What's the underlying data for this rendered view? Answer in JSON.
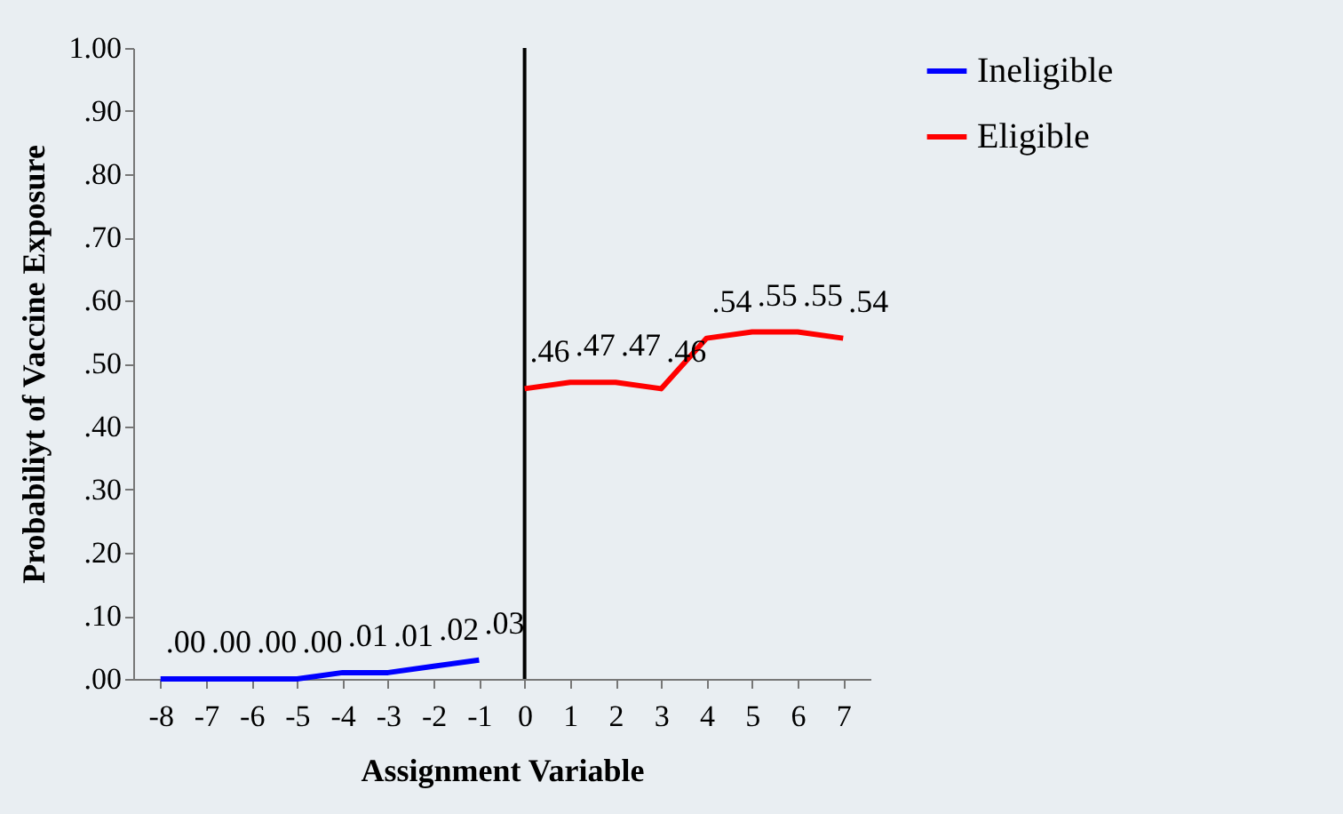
{
  "chart_data": {
    "type": "line",
    "xlabel": "Assignment Variable",
    "ylabel": "Probabiliyt of Vaccine Exposure",
    "xlim": [
      -8.6,
      7.6
    ],
    "xticks": [
      -8,
      -7,
      -6,
      -5,
      -4,
      -3,
      -2,
      -1,
      0,
      1,
      2,
      3,
      4,
      5,
      6,
      7
    ],
    "ylim": [
      0,
      1
    ],
    "yticks": [
      {
        "value": 0,
        "label": ".00"
      },
      {
        "value": 0.1,
        "label": ".10"
      },
      {
        "value": 0.2,
        "label": ".20"
      },
      {
        "value": 0.3,
        "label": ".30"
      },
      {
        "value": 0.4,
        "label": ".40"
      },
      {
        "value": 0.5,
        "label": ".50"
      },
      {
        "value": 0.6,
        "label": ".60"
      },
      {
        "value": 0.7,
        "label": ".70"
      },
      {
        "value": 0.8,
        "label": ".80"
      },
      {
        "value": 0.9,
        "label": ".90"
      },
      {
        "value": 1,
        "label": "1.00"
      }
    ],
    "series": [
      {
        "name": "Ineligible",
        "color": "#0000ff",
        "x": [
          -8,
          -7,
          -6,
          -5,
          -4,
          -3,
          -2,
          -1
        ],
        "values": [
          0,
          0,
          0,
          0,
          0.01,
          0.01,
          0.02,
          0.03
        ],
        "value_labels": [
          ".00",
          ".00",
          ".00",
          ".00",
          ".01",
          ".01",
          ".02",
          ".03"
        ]
      },
      {
        "name": "Eligible",
        "color": "#ff0000",
        "x": [
          0,
          1,
          2,
          3,
          4,
          5,
          6,
          7
        ],
        "values": [
          0.46,
          0.47,
          0.47,
          0.46,
          0.54,
          0.55,
          0.55,
          0.54
        ],
        "value_labels": [
          ".46",
          ".47",
          ".47",
          ".46",
          ".54",
          ".55",
          ".55",
          ".54"
        ]
      }
    ],
    "ref_lines": [
      {
        "axis": "x",
        "value": 0,
        "color": "#000000"
      }
    ],
    "grid": false,
    "legend": "right",
    "marker": "none",
    "line_style": "solid"
  }
}
